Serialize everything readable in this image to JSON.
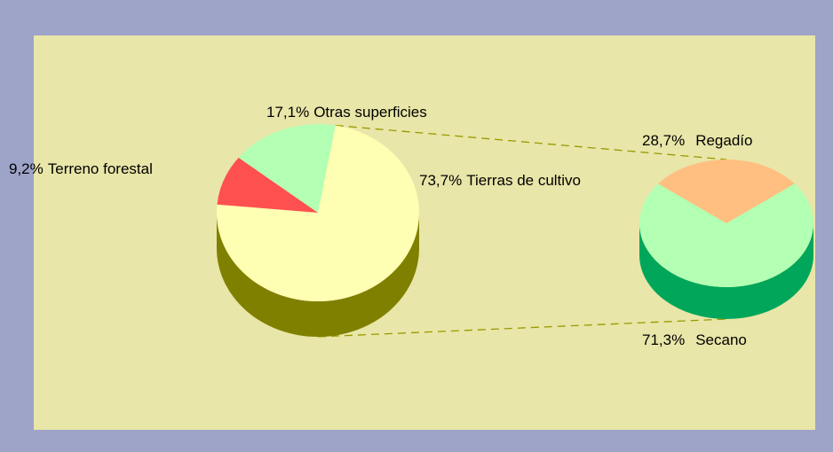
{
  "chart_data": [
    {
      "type": "pie",
      "categories": [
        "Tierras de cultivo",
        "Terreno forestal",
        "Otras superficies"
      ],
      "values": [
        73.7,
        9.2,
        17.1
      ],
      "value_labels": [
        "73,7%",
        "9,2%",
        "17,1%"
      ],
      "colors": [
        "#ffffb3",
        "#ff5050",
        "#b3ffb3"
      ],
      "side_colors": [
        "#808000",
        "#a03030",
        "#70a070"
      ]
    },
    {
      "type": "pie",
      "categories": [
        "Regadío",
        "Secano"
      ],
      "values": [
        28.7,
        71.3
      ],
      "value_labels": [
        "28,7%",
        "71,3%"
      ],
      "colors": [
        "#ffbf80",
        "#b3ffb3"
      ],
      "side_colors": [
        "#c08040",
        "#00a65a"
      ]
    }
  ]
}
